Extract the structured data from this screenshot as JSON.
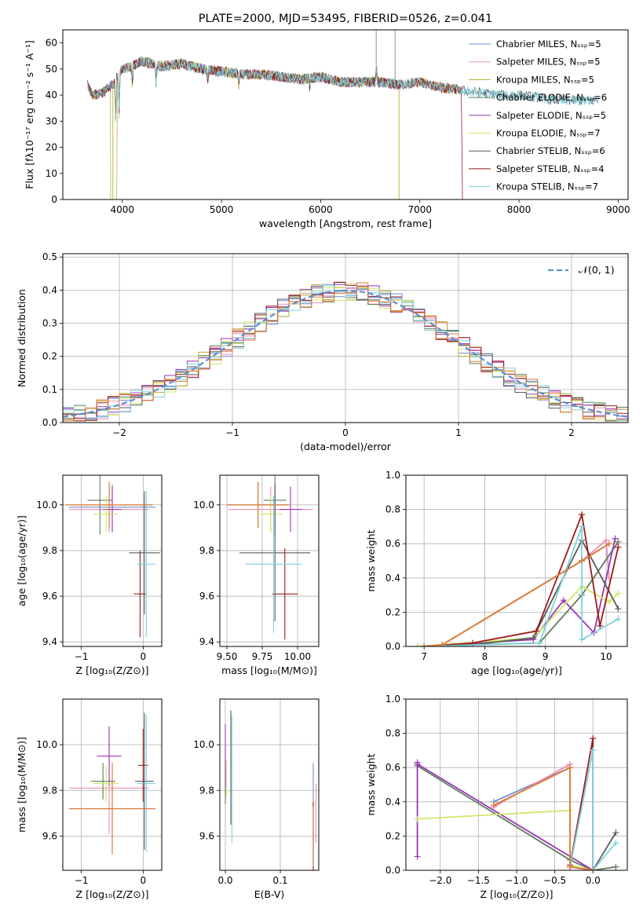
{
  "colors": {
    "chabrier_miles": "#6f8fd6",
    "salpeter_miles": "#ea8fb4",
    "kroupa_miles": "#b8ae2a",
    "chabrier_elodie": "#5e7d5a",
    "salpeter_elodie": "#9b35b8",
    "kroupa_elodie": "#cfe86a",
    "chabrier_stelib": "#5a5a5a",
    "salpeter_stelib": "#9b1a1a",
    "kroupa_stelib": "#7fd2de",
    "extra_orange": "#e07a3a",
    "gaussian": "#5b8fd6"
  },
  "chart_data": [
    {
      "id": "spectrum",
      "type": "line",
      "title": "PLATE=2000, MJD=53495, FIBERID=0526, z=0.041",
      "xlabel": "wavelength [Angstrom, rest frame]",
      "ylabel": "Flux [fλ10⁻¹⁷ erg cm⁻² s⁻¹ A⁻¹]",
      "xlim": [
        3400,
        9100
      ],
      "ylim": [
        0,
        65
      ],
      "xticks": [
        4000,
        5000,
        6000,
        7000,
        8000,
        9000
      ],
      "yticks": [
        0,
        10,
        20,
        30,
        40,
        50,
        60
      ],
      "legend_position": "upper-right",
      "legend": [
        "Chabrier MILES, Nₛₛₚ=5",
        "Salpeter MILES, Nₛₛₚ=5",
        "Kroupa MILES, Nₛₛₚ=5",
        "Chabrier ELODIE, Nₛₛₚ=6",
        "Salpeter ELODIE, Nₛₛₚ=5",
        "Kroupa ELODIE, Nₛₛₚ=7",
        "Chabrier STELIB, Nₛₛₚ=6",
        "Salpeter STELIB, Nₛₛₚ=4",
        "Kroupa STELIB, Nₛₛₚ=7"
      ],
      "continuum": {
        "x": [
          3650,
          3700,
          3800,
          3900,
          4000,
          4100,
          4200,
          4300,
          4400,
          4600,
          4800,
          5000,
          5200,
          5400,
          5600,
          5800,
          6000,
          6200,
          6400,
          6600,
          6800,
          7000,
          7200,
          7400,
          7600,
          7800,
          8000,
          8200,
          8400,
          8600,
          8800
        ],
        "y": [
          44,
          40,
          41,
          44,
          50,
          51,
          53,
          52,
          51,
          52,
          50,
          49,
          48,
          48,
          47,
          46,
          47,
          45,
          45,
          45,
          44,
          45,
          43,
          42,
          41,
          40,
          40,
          39,
          38,
          38,
          38
        ]
      },
      "series_ranges": [
        {
          "key": "chabrier_miles",
          "x": [
            3650,
            7420
          ]
        },
        {
          "key": "salpeter_miles",
          "x": [
            3650,
            7420
          ]
        },
        {
          "key": "kroupa_miles",
          "x": [
            3650,
            7420
          ]
        },
        {
          "key": "chabrier_elodie",
          "x": [
            3650,
            6800
          ]
        },
        {
          "key": "salpeter_elodie",
          "x": [
            3650,
            6800
          ]
        },
        {
          "key": "kroupa_elodie",
          "x": [
            3650,
            6800
          ]
        },
        {
          "key": "chabrier_stelib",
          "x": [
            3650,
            8800
          ]
        },
        {
          "key": "salpeter_stelib",
          "x": [
            3650,
            7420
          ]
        },
        {
          "key": "kroupa_stelib",
          "x": [
            3650,
            8800
          ]
        }
      ]
    },
    {
      "id": "residuals",
      "type": "histogram",
      "xlabel": "(data-model)/error",
      "ylabel": "Normed distribution",
      "xlim": [
        -2.5,
        2.5
      ],
      "ylim": [
        0,
        0.51
      ],
      "xticks": [
        -2,
        -1,
        0,
        1,
        2
      ],
      "yticks": [
        0.0,
        0.1,
        0.2,
        0.3,
        0.4,
        0.5
      ],
      "grid": true,
      "legend_position": "upper-right",
      "legend": [
        "𝒩(0, 1)"
      ],
      "gaussian": {
        "mean": 0,
        "sigma": 1
      },
      "bin_width": 0.1
    },
    {
      "id": "age_vs_Z",
      "type": "errorbar",
      "xlabel": "Z [log₁₀(Z/Z⊙)]",
      "ylabel": "age  [log₁₀(age/yr)]",
      "xlim": [
        -1.3,
        0.3
      ],
      "ylim": [
        9.38,
        10.13
      ],
      "xticks": [
        -1,
        0
      ],
      "yticks": [
        9.4,
        9.6,
        9.8,
        10.0
      ],
      "grid": true,
      "points": [
        {
          "key": "chabrier_miles",
          "x": -0.5,
          "y": 9.99,
          "xerr": 0.7,
          "yerr": 0.1
        },
        {
          "key": "salpeter_miles",
          "x": -0.55,
          "y": 9.98,
          "xerr": 0.65,
          "yerr": 0.1
        },
        {
          "key": "kroupa_miles",
          "x": -0.55,
          "y": 10.0,
          "xerr": 0.7,
          "yerr": 0.1
        },
        {
          "key": "chabrier_elodie",
          "x": -0.7,
          "y": 10.02,
          "xerr": 0.2,
          "yerr": 0.15
        },
        {
          "key": "salpeter_elodie",
          "x": -0.5,
          "y": 9.98,
          "xerr": 0.15,
          "yerr": 0.1
        },
        {
          "key": "kroupa_elodie",
          "x": -0.6,
          "y": 9.96,
          "xerr": 0.2,
          "yerr": 0.08
        },
        {
          "key": "chabrier_stelib",
          "x": 0.02,
          "y": 9.79,
          "xerr": 0.25,
          "yerr": 0.27
        },
        {
          "key": "salpeter_stelib",
          "x": -0.05,
          "y": 9.61,
          "xerr": 0.1,
          "yerr": 0.19
        },
        {
          "key": "kroupa_stelib",
          "x": 0.05,
          "y": 9.74,
          "xerr": 0.15,
          "yerr": 0.32
        },
        {
          "key": "extra_orange",
          "x": -0.55,
          "y": 10.0,
          "xerr": 0.7,
          "yerr": 0.1
        }
      ]
    },
    {
      "id": "age_vs_mass",
      "type": "errorbar",
      "xlabel": "mass [log₁₀(M/M⊙)]",
      "ylabel": "",
      "xlim": [
        9.45,
        10.15
      ],
      "ylim": [
        9.38,
        10.13
      ],
      "xticks": [
        9.5,
        9.75,
        10.0
      ],
      "xticklabels": [
        "9.50",
        "9.75",
        "10.00"
      ],
      "yticks": [
        9.4,
        9.6,
        9.8,
        10.0
      ],
      "grid": true,
      "points": [
        {
          "key": "chabrier_miles",
          "x": 9.72,
          "y": 10.0,
          "xerr": 0.22,
          "yerr": 0.1
        },
        {
          "key": "salpeter_miles",
          "x": 9.81,
          "y": 9.98,
          "xerr": 0.3,
          "yerr": 0.1
        },
        {
          "key": "kroupa_miles",
          "x": 9.72,
          "y": 10.0,
          "xerr": 0.22,
          "yerr": 0.1
        },
        {
          "key": "chabrier_elodie",
          "x": 9.84,
          "y": 10.02,
          "xerr": 0.08,
          "yerr": 0.15
        },
        {
          "key": "salpeter_elodie",
          "x": 9.95,
          "y": 9.98,
          "xerr": 0.08,
          "yerr": 0.1
        },
        {
          "key": "kroupa_elodie",
          "x": 9.81,
          "y": 9.96,
          "xerr": 0.08,
          "yerr": 0.08
        },
        {
          "key": "chabrier_stelib",
          "x": 9.84,
          "y": 9.79,
          "xerr": 0.25,
          "yerr": 0.3
        },
        {
          "key": "salpeter_stelib",
          "x": 9.91,
          "y": 9.61,
          "xerr": 0.09,
          "yerr": 0.2
        },
        {
          "key": "kroupa_stelib",
          "x": 9.83,
          "y": 9.74,
          "xerr": 0.2,
          "yerr": 0.3
        },
        {
          "key": "extra_orange",
          "x": 9.72,
          "y": 10.0,
          "xerr": 0.22,
          "yerr": 0.1
        }
      ]
    },
    {
      "id": "weight_vs_age",
      "type": "line",
      "xlabel": "age  [log₁₀(age/yr)]",
      "ylabel": "mass weight",
      "xlim": [
        6.7,
        10.35
      ],
      "ylim": [
        0,
        1.0
      ],
      "xticks": [
        7,
        8,
        9,
        10
      ],
      "yticks": [
        0.0,
        0.2,
        0.4,
        0.6,
        0.8,
        1.0
      ],
      "grid": true,
      "series": [
        {
          "key": "chabrier_miles",
          "x": [
            7.0,
            7.3,
            9.6,
            10.05
          ],
          "y": [
            0.0,
            0.01,
            0.5,
            0.6
          ]
        },
        {
          "key": "salpeter_miles",
          "x": [
            7.0,
            7.3,
            9.6,
            10.0,
            10.05
          ],
          "y": [
            0.0,
            0.01,
            0.5,
            0.62,
            0.4
          ]
        },
        {
          "key": "kroupa_miles",
          "x": [
            7.0,
            7.3,
            9.6,
            10.05
          ],
          "y": [
            0.0,
            0.01,
            0.5,
            0.6
          ]
        },
        {
          "key": "chabrier_elodie",
          "x": [
            6.9,
            8.9,
            9.6,
            10.2
          ],
          "y": [
            0.0,
            0.02,
            0.3,
            0.61
          ]
        },
        {
          "key": "salpeter_elodie",
          "x": [
            6.9,
            8.8,
            9.3,
            9.8,
            10.15
          ],
          "y": [
            0.0,
            0.04,
            0.27,
            0.08,
            0.63
          ]
        },
        {
          "key": "kroupa_elodie",
          "x": [
            6.9,
            8.8,
            9.6,
            10.05,
            10.2
          ],
          "y": [
            0.0,
            0.05,
            0.35,
            0.26,
            0.31
          ]
        },
        {
          "key": "chabrier_stelib",
          "x": [
            7.0,
            7.8,
            8.8,
            9.6,
            10.2
          ],
          "y": [
            0.0,
            0.01,
            0.05,
            0.62,
            0.22
          ]
        },
        {
          "key": "salpeter_stelib",
          "x": [
            7.0,
            7.8,
            8.85,
            9.6,
            9.9,
            10.2
          ],
          "y": [
            0.0,
            0.02,
            0.09,
            0.77,
            0.12,
            0.58
          ]
        },
        {
          "key": "kroupa_stelib",
          "x": [
            7.0,
            8.9,
            9.6,
            9.6,
            10.2
          ],
          "y": [
            0.0,
            0.02,
            0.7,
            0.04,
            0.16
          ]
        },
        {
          "key": "extra_orange",
          "x": [
            7.0,
            7.3,
            9.6,
            10.05
          ],
          "y": [
            0.0,
            0.01,
            0.5,
            0.6
          ]
        }
      ]
    },
    {
      "id": "mass_vs_Z",
      "type": "errorbar",
      "xlabel": "Z [log₁₀(Z/Z⊙)]",
      "ylabel": "mass [log₁₀(M/M⊙)]",
      "xlim": [
        -1.3,
        0.3
      ],
      "ylim": [
        9.45,
        10.2
      ],
      "xticks": [
        -1,
        0
      ],
      "yticks": [
        9.6,
        9.8,
        10.0
      ],
      "grid": true,
      "points": [
        {
          "key": "chabrier_miles",
          "x": -0.5,
          "y": 9.72,
          "xerr": 0.7,
          "yerr": 0.13
        },
        {
          "key": "salpeter_miles",
          "x": -0.55,
          "y": 9.81,
          "xerr": 0.65,
          "yerr": 0.2
        },
        {
          "key": "kroupa_miles",
          "x": -0.5,
          "y": 9.72,
          "xerr": 0.7,
          "yerr": 0.2
        },
        {
          "key": "chabrier_elodie",
          "x": -0.65,
          "y": 9.84,
          "xerr": 0.2,
          "yerr": 0.08
        },
        {
          "key": "salpeter_elodie",
          "x": -0.55,
          "y": 9.95,
          "xerr": 0.2,
          "yerr": 0.13
        },
        {
          "key": "kroupa_elodie",
          "x": -0.6,
          "y": 9.83,
          "xerr": 0.2,
          "yerr": 0.08
        },
        {
          "key": "chabrier_stelib",
          "x": 0.02,
          "y": 9.84,
          "xerr": 0.15,
          "yerr": 0.3
        },
        {
          "key": "salpeter_stelib",
          "x": 0.0,
          "y": 9.91,
          "xerr": 0.08,
          "yerr": 0.16
        },
        {
          "key": "kroupa_stelib",
          "x": 0.05,
          "y": 9.83,
          "xerr": 0.15,
          "yerr": 0.3
        },
        {
          "key": "extra_orange",
          "x": -0.5,
          "y": 9.72,
          "xerr": 0.7,
          "yerr": 0.2
        }
      ]
    },
    {
      "id": "mass_vs_ebv",
      "type": "errorbar",
      "xlabel": "E(B-V)",
      "ylabel": "",
      "xlim": [
        -0.01,
        0.17
      ],
      "ylim": [
        9.45,
        10.2
      ],
      "xticks": [
        0.0,
        0.1
      ],
      "xticklabels": [
        "0.0",
        "0.1"
      ],
      "yticks": [
        9.6,
        9.8,
        10.0
      ],
      "grid": true,
      "points": [
        {
          "key": "chabrier_miles",
          "x": 0.16,
          "y": 9.72,
          "xerr": 0,
          "yerr": 0.2
        },
        {
          "key": "salpeter_miles",
          "x": 0.165,
          "y": 9.7,
          "xerr": 0,
          "yerr": 0.13
        },
        {
          "key": "kroupa_miles",
          "x": 0.16,
          "y": 9.62,
          "xerr": 0,
          "yerr": 0.14
        },
        {
          "key": "chabrier_elodie",
          "x": 0.0,
          "y": 9.84,
          "xerr": 0,
          "yerr": 0.1
        },
        {
          "key": "salpeter_elodie",
          "x": 0.0,
          "y": 9.95,
          "xerr": 0,
          "yerr": 0.14
        },
        {
          "key": "kroupa_elodie",
          "x": 0.002,
          "y": 9.85,
          "xerr": 0,
          "yerr": 0.08
        },
        {
          "key": "chabrier_stelib",
          "x": 0.01,
          "y": 9.9,
          "xerr": 0,
          "yerr": 0.25
        },
        {
          "key": "salpeter_stelib",
          "x": 0.16,
          "y": 9.6,
          "xerr": 0,
          "yerr": 0.15
        },
        {
          "key": "kroupa_stelib",
          "x": 0.012,
          "y": 9.85,
          "xerr": 0,
          "yerr": 0.28
        },
        {
          "key": "extra_orange",
          "x": 0.16,
          "y": 9.6,
          "xerr": 0,
          "yerr": 0.13
        }
      ]
    },
    {
      "id": "weight_vs_Z",
      "type": "line",
      "xlabel": "Z [log₁₀(Z/Z⊙)]",
      "ylabel": "mass weight",
      "xlim": [
        -2.45,
        0.45
      ],
      "ylim": [
        0,
        1.0
      ],
      "xticks": [
        -2.0,
        -1.5,
        -1.0,
        -0.5,
        0.0
      ],
      "xticklabels": [
        "−2.0",
        "−1.5",
        "−1.0",
        "−0.5",
        "0.0"
      ],
      "yticks": [
        0.0,
        0.2,
        0.4,
        0.6,
        0.8,
        1.0
      ],
      "grid": true,
      "series": [
        {
          "key": "chabrier_miles",
          "x": [
            -1.3,
            -0.3,
            -0.3,
            0.0
          ],
          "y": [
            0.4,
            0.6,
            0.02,
            0.0
          ]
        },
        {
          "key": "salpeter_miles",
          "x": [
            -1.3,
            -0.3,
            -0.3,
            0.0
          ],
          "y": [
            0.37,
            0.62,
            0.02,
            0.0
          ]
        },
        {
          "key": "kroupa_miles",
          "x": [
            -1.3,
            -0.3,
            -0.3,
            0.0
          ],
          "y": [
            0.38,
            0.6,
            0.02,
            0.0
          ]
        },
        {
          "key": "chabrier_elodie",
          "x": [
            -2.3,
            -0.3,
            0.0,
            0.3
          ],
          "y": [
            0.61,
            0.06,
            0.0,
            0.02
          ]
        },
        {
          "key": "salpeter_elodie",
          "x": [
            -2.3,
            -2.3,
            -2.3,
            0.0
          ],
          "y": [
            0.08,
            0.63,
            0.62,
            0.0
          ]
        },
        {
          "key": "kroupa_elodie",
          "x": [
            -2.3,
            -0.3,
            -0.3,
            0.0
          ],
          "y": [
            0.3,
            0.35,
            0.03,
            0.0
          ]
        },
        {
          "key": "chabrier_stelib",
          "x": [
            -0.3,
            0.0,
            0.3
          ],
          "y": [
            0.02,
            0.0,
            0.22
          ]
        },
        {
          "key": "salpeter_stelib",
          "x": [
            -0.3,
            0.0,
            0.0
          ],
          "y": [
            0.03,
            0.77,
            0.0
          ]
        },
        {
          "key": "kroupa_stelib",
          "x": [
            -0.3,
            0.0,
            0.0,
            0.3
          ],
          "y": [
            0.02,
            0.7,
            0.0,
            0.16
          ]
        },
        {
          "key": "extra_orange",
          "x": [
            -1.3,
            -0.3,
            -0.3,
            0.0
          ],
          "y": [
            0.38,
            0.6,
            0.02,
            0.0
          ]
        }
      ]
    }
  ]
}
